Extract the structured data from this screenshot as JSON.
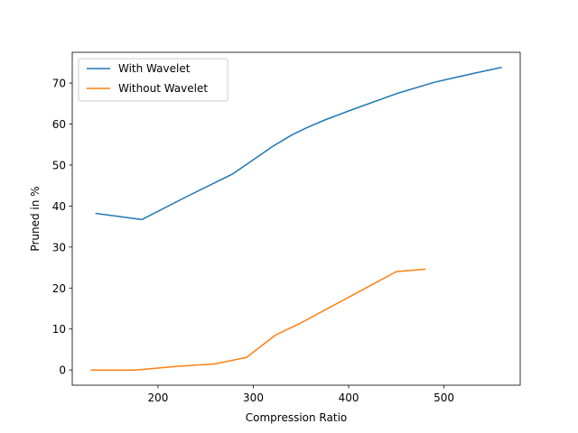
{
  "chart_data": {
    "type": "line",
    "title": "",
    "xlabel": "Compression Ratio",
    "ylabel": "Pruned in %",
    "xlim": [
      110,
      580
    ],
    "ylim": [
      -3.7,
      77.5
    ],
    "xticks": [
      200,
      300,
      400,
      500
    ],
    "yticks": [
      0,
      10,
      20,
      30,
      40,
      50,
      60,
      70
    ],
    "grid": false,
    "legend_position": "upper left",
    "series": [
      {
        "name": "With Wavelet",
        "color": "#1f77b4",
        "x": [
          135,
          183,
          230,
          278,
          295,
          320,
          340,
          355,
          375,
          400,
          450,
          490,
          530,
          560
        ],
        "y": [
          38.2,
          36.7,
          42.3,
          47.8,
          50.5,
          54.5,
          57.3,
          59.0,
          61.0,
          63.2,
          67.4,
          70.2,
          72.3,
          73.8
        ]
      },
      {
        "name": "Without Wavelet",
        "color": "#ff7f0e",
        "x": [
          130,
          176,
          220,
          260,
          293,
          323,
          350,
          390,
          450,
          480
        ],
        "y": [
          0.0,
          0.0,
          0.9,
          1.5,
          3.1,
          8.5,
          11.5,
          16.5,
          24.0,
          24.6
        ]
      }
    ]
  }
}
